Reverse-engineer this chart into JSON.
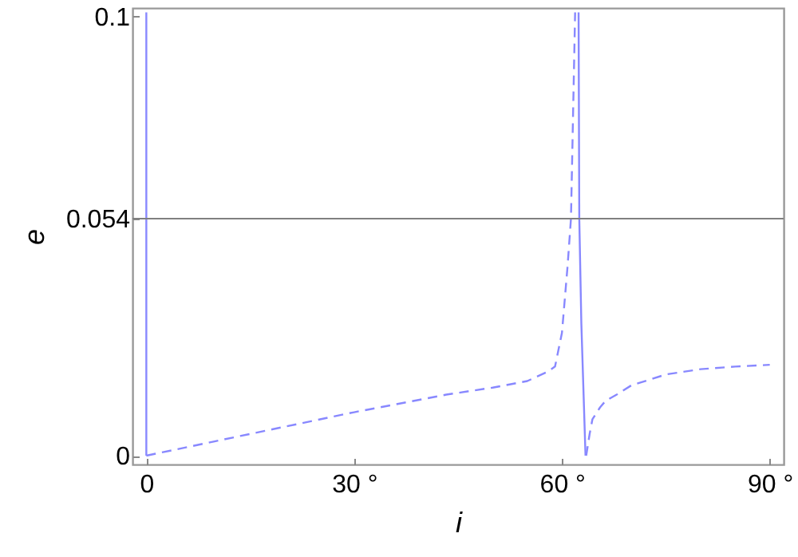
{
  "chart_data": {
    "type": "line",
    "xlabel": "i",
    "ylabel": "e",
    "xlim": [
      -2,
      92
    ],
    "ylim": [
      -0.002,
      0.102
    ],
    "xticks": [
      0,
      {
        "value": 30,
        "label": "30 °"
      },
      {
        "value": 60,
        "label": "60 °"
      },
      {
        "value": 90,
        "label": "90 °"
      }
    ],
    "yticks": [
      0,
      0.054,
      0.1
    ],
    "grid": false,
    "ref_lines": [
      {
        "axis": "y",
        "value": 0.054,
        "color": "#808080"
      }
    ],
    "series": [
      {
        "color": "#8888ff",
        "line_style": "solid",
        "x": [
          0,
          0
        ],
        "values": [
          0,
          0.101
        ]
      },
      {
        "color": "#8888ff",
        "line_style": "dashed",
        "x": [
          0,
          10,
          20,
          30,
          40,
          43.3,
          50,
          55,
          58,
          59,
          60,
          60.8,
          61.3,
          61.9
        ],
        "values": [
          0,
          0.0033,
          0.0066,
          0.0099,
          0.0129,
          0.0139,
          0.0155,
          0.017,
          0.0192,
          0.0203,
          0.028,
          0.043,
          0.054,
          0.101
        ]
      },
      {
        "color": "#8888ff",
        "line_style": "solid",
        "x": [
          62.4,
          62.5,
          62.8,
          63.4
        ],
        "values": [
          0.101,
          0.054,
          0.03,
          0
        ]
      },
      {
        "color": "#8888ff",
        "line_style": "dashed",
        "x": [
          63.5,
          64,
          64.4,
          65.5,
          66.3,
          68,
          70,
          75,
          80,
          85,
          90
        ],
        "values": [
          0,
          0.005,
          0.0083,
          0.011,
          0.0125,
          0.014,
          0.016,
          0.0185,
          0.0197,
          0.0203,
          0.0207
        ]
      }
    ]
  }
}
